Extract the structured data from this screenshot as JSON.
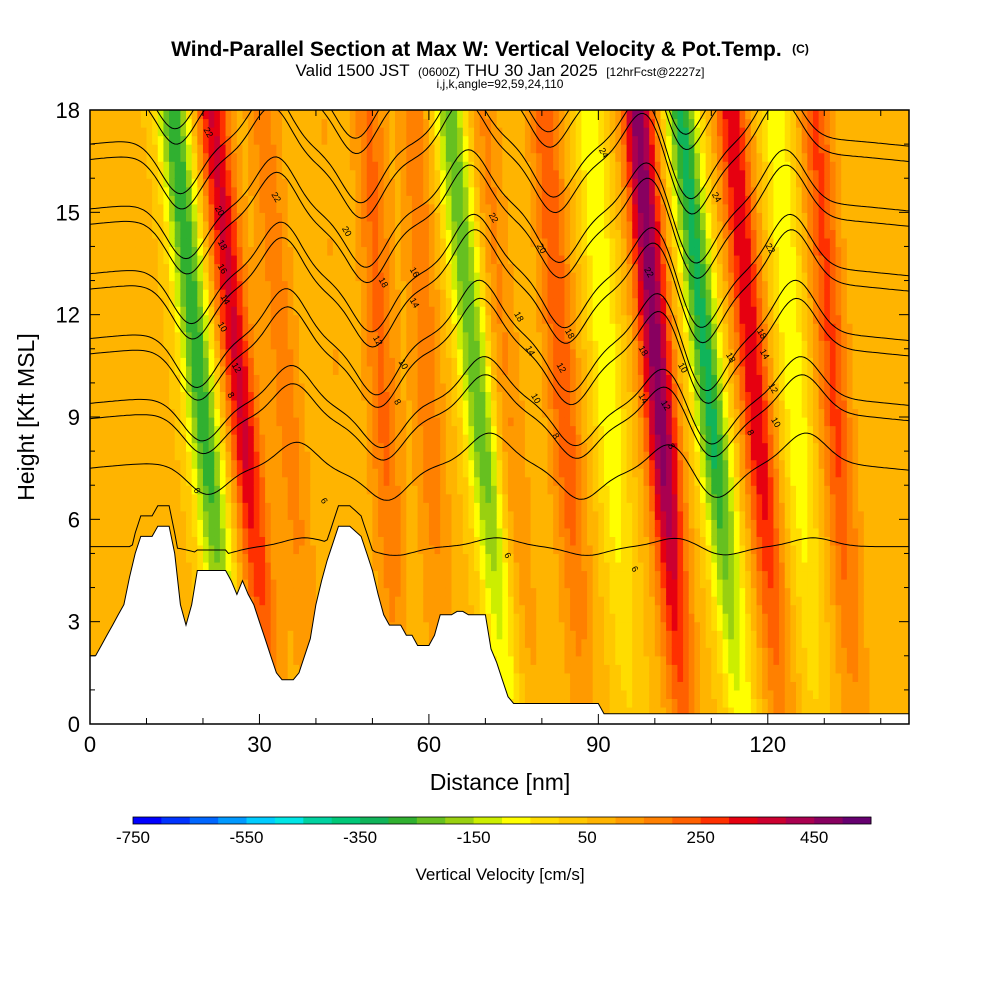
{
  "chart_data": {
    "type": "heatmap",
    "title_main": "Wind-Parallel Section at Max W: Vertical Velocity & Pot.Temp.",
    "title_mark": "(C)",
    "subtitle_valid": "Valid 1500 JST",
    "subtitle_utc": "(0600Z)",
    "subtitle_date": "THU 30 Jan 2025",
    "subtitle_fcst": "[12hrFcst@2227z]",
    "subtitle_ijk": "i,j,k,angle=92,59,24,110",
    "xlabel": "Distance [nm]",
    "ylabel": "Height [Kft MSL]",
    "xlim": [
      0,
      145
    ],
    "ylim": [
      0,
      18
    ],
    "x_ticks": [
      "0",
      "30",
      "60",
      "90",
      "120"
    ],
    "x_tick_values": [
      0,
      30,
      60,
      90,
      120
    ],
    "y_ticks": [
      "0",
      "3",
      "6",
      "9",
      "12",
      "15",
      "18"
    ],
    "y_tick_values": [
      0,
      3,
      6,
      9,
      12,
      15,
      18
    ],
    "colorbar": {
      "title": "Vertical Velocity [cm/s]",
      "labels": [
        "-750",
        "-550",
        "-350",
        "-150",
        "50",
        "250",
        "450"
      ],
      "label_values": [
        -750,
        -550,
        -350,
        -150,
        50,
        250,
        450
      ],
      "range": [
        -750,
        550
      ],
      "colors": [
        "#0000ff",
        "#0033ff",
        "#0066ff",
        "#0099ff",
        "#00ccff",
        "#00e6e6",
        "#00d2a0",
        "#00c878",
        "#10b45a",
        "#30b030",
        "#66c020",
        "#99d010",
        "#ccee00",
        "#ffff00",
        "#ffdd00",
        "#ffc800",
        "#ffb400",
        "#ff9a00",
        "#ff8000",
        "#ff6000",
        "#ff3000",
        "#e60010",
        "#cc0030",
        "#aa0050",
        "#880060",
        "#660070"
      ]
    },
    "terrain_kft": [
      [
        0,
        2
      ],
      [
        1,
        2
      ],
      [
        2,
        2.3
      ],
      [
        3,
        2.6
      ],
      [
        4,
        2.9
      ],
      [
        5,
        3.2
      ],
      [
        6,
        3.5
      ],
      [
        7,
        4.3
      ],
      [
        8,
        5
      ],
      [
        9,
        5.5
      ],
      [
        11,
        5.5
      ],
      [
        12,
        5.8
      ],
      [
        14,
        5.8
      ],
      [
        15,
        5
      ],
      [
        16,
        3.5
      ],
      [
        17,
        2.9
      ],
      [
        18,
        3.5
      ],
      [
        19,
        4.5
      ],
      [
        21,
        4.5
      ],
      [
        24,
        4.5
      ],
      [
        25,
        4.2
      ],
      [
        26,
        3.8
      ],
      [
        27,
        4.2
      ],
      [
        28,
        3.8
      ],
      [
        29,
        3.5
      ],
      [
        30,
        3
      ],
      [
        31,
        2.5
      ],
      [
        32,
        2
      ],
      [
        33,
        1.5
      ],
      [
        34,
        1.3
      ],
      [
        36,
        1.3
      ],
      [
        37,
        1.5
      ],
      [
        38,
        2
      ],
      [
        39,
        2.5
      ],
      [
        40,
        3.5
      ],
      [
        41,
        4.2
      ],
      [
        42,
        4.8
      ],
      [
        43,
        5.3
      ],
      [
        44,
        5.8
      ],
      [
        46,
        5.8
      ],
      [
        48,
        5.5
      ],
      [
        49,
        5
      ],
      [
        50,
        4.5
      ],
      [
        51,
        3.8
      ],
      [
        52,
        3.2
      ],
      [
        53,
        2.9
      ],
      [
        55,
        2.9
      ],
      [
        56,
        2.6
      ],
      [
        57,
        2.6
      ],
      [
        58,
        2.3
      ],
      [
        60,
        2.3
      ],
      [
        61,
        2.6
      ],
      [
        62,
        3.2
      ],
      [
        64,
        3.2
      ],
      [
        65,
        3.3
      ],
      [
        66,
        3.3
      ],
      [
        67,
        3.2
      ],
      [
        70,
        3.2
      ],
      [
        71,
        2.2
      ],
      [
        72,
        1.8
      ],
      [
        73,
        1.3
      ],
      [
        74,
        0.8
      ],
      [
        75,
        0.6
      ],
      [
        85,
        0.6
      ],
      [
        90,
        0.6
      ],
      [
        91,
        0.3
      ],
      [
        145,
        0.3
      ]
    ],
    "w_bands": [
      {
        "x": 20,
        "w": -350,
        "tilt": -0.6
      },
      {
        "x": 27,
        "w": 300,
        "tilt": -0.6
      },
      {
        "x": 35,
        "w": 120,
        "tilt": -0.5
      },
      {
        "x": 44,
        "w": 40,
        "tilt": -0.3
      },
      {
        "x": 52,
        "w": 150,
        "tilt": -0.3
      },
      {
        "x": 60,
        "w": 120,
        "tilt": -0.3
      },
      {
        "x": 69,
        "w": -300,
        "tilt": -0.6
      },
      {
        "x": 74,
        "w": 100,
        "tilt": -0.5
      },
      {
        "x": 84,
        "w": 180,
        "tilt": -0.4
      },
      {
        "x": 92,
        "w": -150,
        "tilt": -0.4
      },
      {
        "x": 101,
        "w": 420,
        "tilt": -0.45
      },
      {
        "x": 110,
        "w": -380,
        "tilt": -0.6
      },
      {
        "x": 118,
        "w": 280,
        "tilt": -0.5
      },
      {
        "x": 125,
        "w": -150,
        "tilt": -0.4
      },
      {
        "x": 132,
        "w": 200,
        "tilt": -0.4
      }
    ],
    "theta_levels": [
      8,
      10,
      12,
      14,
      16,
      18,
      20,
      22,
      24
    ],
    "contour_labels": [
      {
        "text": "22",
        "x": 20.5,
        "y": 17.3
      },
      {
        "text": "22",
        "x": 32.5,
        "y": 15.4
      },
      {
        "text": "24",
        "x": 90.5,
        "y": 16.7
      },
      {
        "text": "24",
        "x": 110.5,
        "y": 15.4
      },
      {
        "text": "20",
        "x": 22.5,
        "y": 15
      },
      {
        "text": "20",
        "x": 45,
        "y": 14.4
      },
      {
        "text": "20",
        "x": 79.5,
        "y": 13.9
      },
      {
        "text": "22",
        "x": 71,
        "y": 14.8
      },
      {
        "text": "22",
        "x": 98.5,
        "y": 13.2
      },
      {
        "text": "22",
        "x": 120,
        "y": 13.9
      },
      {
        "text": "18",
        "x": 23,
        "y": 14
      },
      {
        "text": "18",
        "x": 51.5,
        "y": 12.9
      },
      {
        "text": "18",
        "x": 75.5,
        "y": 11.9
      },
      {
        "text": "18",
        "x": 84.5,
        "y": 11.4
      },
      {
        "text": "18",
        "x": 97.5,
        "y": 10.9
      },
      {
        "text": "18",
        "x": 113,
        "y": 10.7
      },
      {
        "text": "18",
        "x": 118.5,
        "y": 11.4
      },
      {
        "text": "16",
        "x": 23,
        "y": 13.3
      },
      {
        "text": "16",
        "x": 57,
        "y": 13.2
      },
      {
        "text": "14",
        "x": 23.5,
        "y": 12.4
      },
      {
        "text": "14",
        "x": 57,
        "y": 12.3
      },
      {
        "text": "14",
        "x": 77.5,
        "y": 10.9
      },
      {
        "text": "14",
        "x": 97.5,
        "y": 9.5
      },
      {
        "text": "14",
        "x": 119,
        "y": 10.8
      },
      {
        "text": "12",
        "x": 50.5,
        "y": 11.2
      },
      {
        "text": "12",
        "x": 83,
        "y": 10.4
      },
      {
        "text": "12",
        "x": 101.5,
        "y": 9.3
      },
      {
        "text": "12",
        "x": 120.5,
        "y": 9.8
      },
      {
        "text": "10",
        "x": 23,
        "y": 11.6
      },
      {
        "text": "10",
        "x": 55,
        "y": 10.5
      },
      {
        "text": "10",
        "x": 78.5,
        "y": 9.5
      },
      {
        "text": "10",
        "x": 104.5,
        "y": 10.4
      },
      {
        "text": "10",
        "x": 121,
        "y": 8.8
      },
      {
        "text": "12",
        "x": 25.5,
        "y": 10.4
      },
      {
        "text": "8",
        "x": 24.5,
        "y": 9.6
      },
      {
        "text": "8",
        "x": 54,
        "y": 9.4
      },
      {
        "text": "8",
        "x": 82,
        "y": 8.4
      },
      {
        "text": "8",
        "x": 102.5,
        "y": 8.1
      },
      {
        "text": "8",
        "x": 116.5,
        "y": 8.5
      },
      {
        "text": "6",
        "x": 18.5,
        "y": 6.8
      },
      {
        "text": "6",
        "x": 41,
        "y": 6.5
      },
      {
        "text": "6",
        "x": 73.5,
        "y": 4.9
      },
      {
        "text": "6",
        "x": 96,
        "y": 4.5
      }
    ]
  }
}
